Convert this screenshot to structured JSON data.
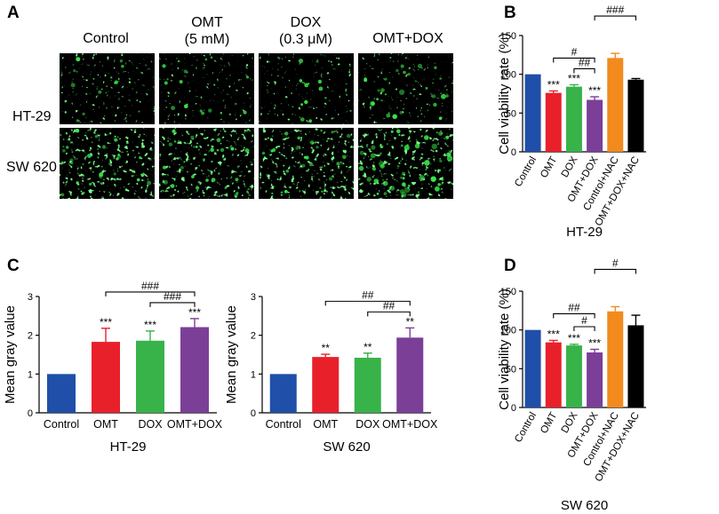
{
  "panel_a": {
    "label": "A",
    "columns": [
      {
        "line1": "Control",
        "line2": ""
      },
      {
        "line1": "OMT",
        "line2": "(5 mM)"
      },
      {
        "line1": "DOX",
        "line2": "(0.3 μM)"
      },
      {
        "line1": "OMT+DOX",
        "line2": ""
      }
    ],
    "rows": [
      "HT-29",
      "SW 620"
    ],
    "image_fill": "#000000",
    "cell_color": "#39e64a"
  },
  "panel_b": {
    "label": "B"
  },
  "panel_c": {
    "label": "C"
  },
  "panel_d": {
    "label": "D"
  },
  "chart_data": [
    {
      "id": "b",
      "type": "bar",
      "title": "",
      "caption": "HT-29",
      "ylabel": "Cell viability rate (%)",
      "ylim": [
        0,
        150
      ],
      "yticks": [
        0,
        50,
        100,
        150
      ],
      "categories": [
        "Control",
        "OMT",
        "DOX",
        "OMT+DOX",
        "Control+NAC",
        "OMT+DOX+NAC"
      ],
      "values": [
        100,
        76,
        84,
        67,
        121,
        93
      ],
      "errors": [
        0,
        2.5,
        2.5,
        4,
        6,
        1.5
      ],
      "colors": [
        "#1f4fa8",
        "#e8202a",
        "#37b34a",
        "#7b3f98",
        "#f28a1e",
        "#000000"
      ],
      "significance": [
        "",
        "***",
        "***",
        "***",
        "",
        ""
      ],
      "brackets": [
        {
          "from": 1,
          "to": 3,
          "label": "#",
          "level": 1
        },
        {
          "from": 2,
          "to": 3,
          "label": "##",
          "level": 0
        },
        {
          "from": 3,
          "to": 5,
          "label": "###",
          "level": 2
        }
      ]
    },
    {
      "id": "c1",
      "type": "bar",
      "title": "",
      "caption": "HT-29",
      "ylabel": "Mean gray value",
      "ylim": [
        0,
        3
      ],
      "yticks": [
        0,
        1,
        2,
        3
      ],
      "categories": [
        "Control",
        "OMT",
        "DOX",
        "OMT+DOX"
      ],
      "values": [
        1.0,
        1.83,
        1.86,
        2.21
      ],
      "errors": [
        0,
        0.35,
        0.25,
        0.22
      ],
      "colors": [
        "#1f4fa8",
        "#e8202a",
        "#37b34a",
        "#7b3f98"
      ],
      "significance": [
        "",
        "***",
        "***",
        "***"
      ],
      "brackets": [
        {
          "from": 1,
          "to": 3,
          "label": "###",
          "level": 1
        },
        {
          "from": 2,
          "to": 3,
          "label": "###",
          "level": 0
        }
      ]
    },
    {
      "id": "c2",
      "type": "bar",
      "title": "",
      "caption": "SW 620",
      "ylabel": "Mean gray value",
      "ylim": [
        0,
        3
      ],
      "yticks": [
        0,
        1,
        2,
        3
      ],
      "categories": [
        "Control",
        "OMT",
        "DOX",
        "OMT+DOX"
      ],
      "values": [
        1.0,
        1.44,
        1.42,
        1.94
      ],
      "errors": [
        0,
        0.07,
        0.12,
        0.25
      ],
      "colors": [
        "#1f4fa8",
        "#e8202a",
        "#37b34a",
        "#7b3f98"
      ],
      "significance": [
        "",
        "**",
        "**",
        "**"
      ],
      "brackets": [
        {
          "from": 1,
          "to": 3,
          "label": "##",
          "level": 1
        },
        {
          "from": 2,
          "to": 3,
          "label": "##",
          "level": 0
        }
      ]
    },
    {
      "id": "d",
      "type": "bar",
      "title": "",
      "caption": "SW 620",
      "ylabel": "Cell viability rate (%)",
      "ylim": [
        0,
        150
      ],
      "yticks": [
        0,
        50,
        100,
        150
      ],
      "categories": [
        "Control",
        "OMT",
        "DOX",
        "OMT+DOX",
        "Control+NAC",
        "OMT+DOX+NAC"
      ],
      "values": [
        100,
        84,
        80,
        71,
        124,
        106
      ],
      "errors": [
        0,
        2.5,
        1.5,
        4,
        6,
        13
      ],
      "colors": [
        "#1f4fa8",
        "#e8202a",
        "#37b34a",
        "#7b3f98",
        "#f28a1e",
        "#000000"
      ],
      "significance": [
        "",
        "***",
        "***",
        "***",
        "",
        ""
      ],
      "brackets": [
        {
          "from": 1,
          "to": 3,
          "label": "##",
          "level": 1
        },
        {
          "from": 2,
          "to": 3,
          "label": "#",
          "level": 0
        },
        {
          "from": 3,
          "to": 5,
          "label": "#",
          "level": 2
        }
      ]
    }
  ]
}
